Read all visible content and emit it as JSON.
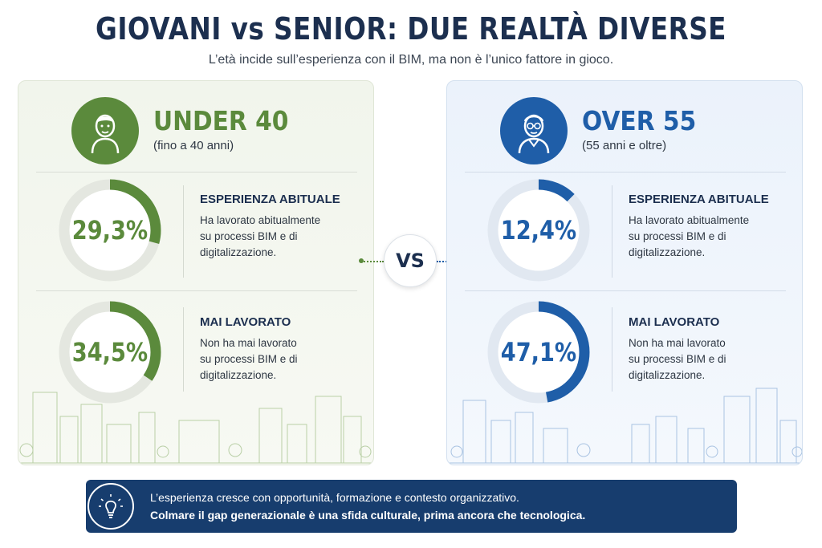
{
  "header": {
    "title": "GIOVANI vs SENIOR: DUE REALTÀ DIVERSE",
    "subtitle": "L’età incide sull’esperienza con il BIM, ma non è l’unico fattore in gioco."
  },
  "colors": {
    "green": "#5b8a3c",
    "blue": "#1f5ea8",
    "navy": "#173d6e"
  },
  "groups": [
    {
      "name": "UNDER 40",
      "range": "(fino a 40 anni)",
      "icon": "young-person-icon",
      "stats": [
        {
          "value": "29,3%",
          "percent": 29.3,
          "heading": "ESPERIENZA ABITUALE",
          "desc": [
            "Ha lavorato abitualmente",
            "su processi BIM e di",
            "digitalizzazione."
          ]
        },
        {
          "value": "34,5%",
          "percent": 34.5,
          "heading": "MAI LAVORATO",
          "desc": [
            "Non ha mai lavorato",
            "su processi BIM e di",
            "digitalizzazione."
          ]
        }
      ]
    },
    {
      "name": "OVER 55",
      "range": "(55 anni e oltre)",
      "icon": "senior-person-icon",
      "stats": [
        {
          "value": "12,4%",
          "percent": 12.4,
          "heading": "ESPERIENZA ABITUALE",
          "desc": [
            "Ha lavorato abitualmente",
            "su processi BIM e di",
            "digitalizzazione."
          ]
        },
        {
          "value": "47,1%",
          "percent": 47.1,
          "heading": "MAI LAVORATO",
          "desc": [
            "Non ha mai lavorato",
            "su processi BIM e di",
            "digitalizzazione."
          ]
        }
      ]
    }
  ],
  "vs_label": "VS",
  "banner": {
    "icon": "lightbulb-icon",
    "line1": "L’esperienza cresce con opportunità, formazione e contesto organizzativo.",
    "line2": "Colmare il gap generazionale è una sfida culturale, prima ancora che tecnologica."
  }
}
